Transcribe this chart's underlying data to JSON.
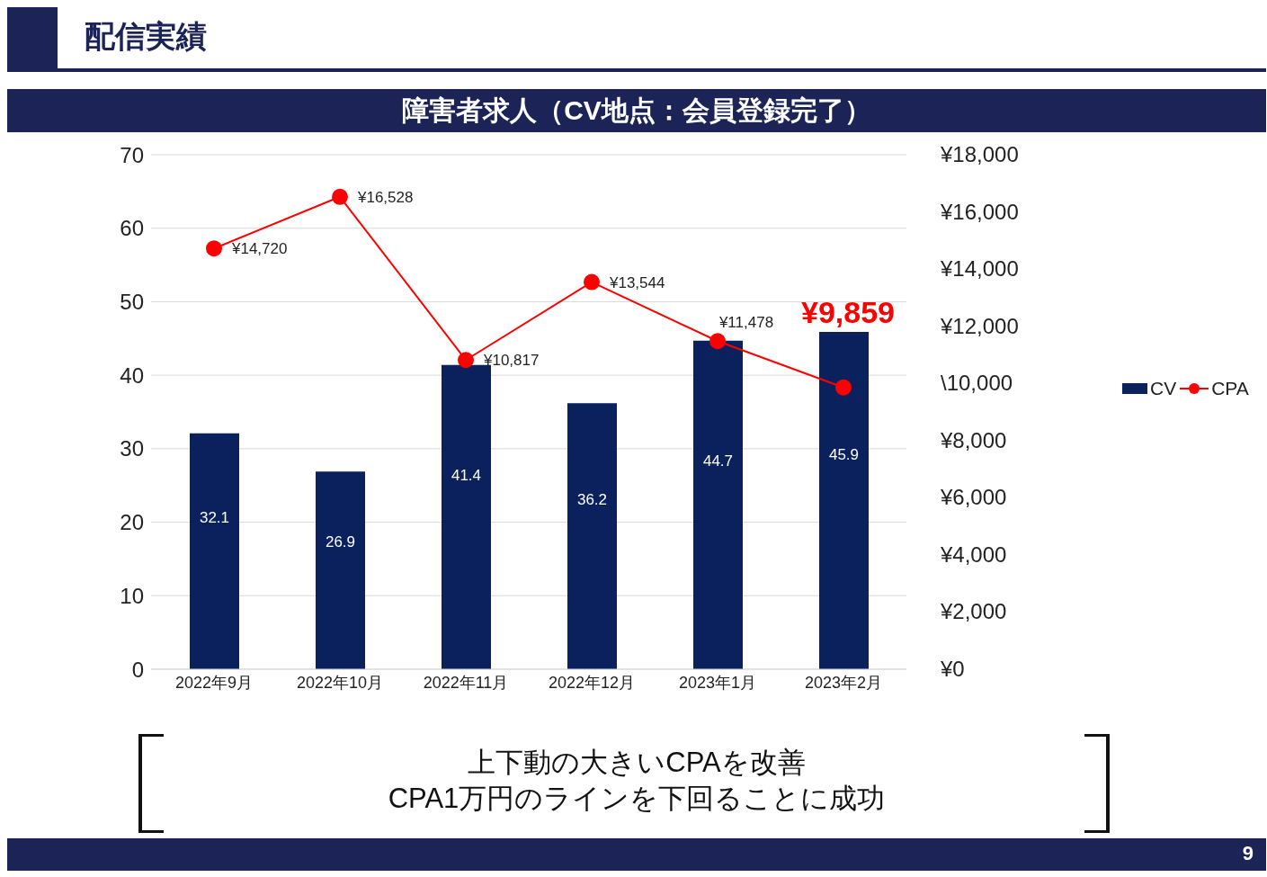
{
  "chart_data": {
    "type": "bar",
    "title": "配信実績",
    "subtitle": "障害者求人（CV地点：会員登録完了）",
    "categories": [
      "2022年9月",
      "2022年10月",
      "2022年11月",
      "2022年12月",
      "2023年1月",
      "2023年2月"
    ],
    "series": [
      {
        "name": "CV",
        "color": "#0b215e",
        "values": [
          32.1,
          26.9,
          41.4,
          36.2,
          44.7,
          45.9
        ],
        "value_labels": [
          "32.1",
          "26.9",
          "41.4",
          "36.2",
          "44.7",
          "45.9"
        ]
      },
      {
        "name": "CPA",
        "type": "line",
        "axis": "y2",
        "color": "#ff0000",
        "marker": "circle",
        "values": [
          14720,
          16528,
          10817,
          13544,
          11478,
          9859
        ],
        "value_labels": [
          "¥14,720",
          "¥16,528",
          "¥10,817",
          "¥13,544",
          "¥11,478",
          "¥9,859"
        ]
      }
    ],
    "ylim": [
      0,
      70
    ],
    "yticks": [
      0,
      10,
      20,
      30,
      40,
      50,
      60,
      70
    ],
    "y2lim": [
      0,
      18000
    ],
    "y2ticks": [
      {
        "value": 0,
        "label": "¥0"
      },
      {
        "value": 2000,
        "label": "¥2,000"
      },
      {
        "value": 4000,
        "label": "¥4,000"
      },
      {
        "value": 6000,
        "label": "¥6,000"
      },
      {
        "value": 8000,
        "label": "¥8,000"
      },
      {
        "value": 10000,
        "label": "\\10,000"
      },
      {
        "value": 12000,
        "label": "¥12,000"
      },
      {
        "value": 14000,
        "label": "¥14,000"
      },
      {
        "value": 16000,
        "label": "¥16,000"
      },
      {
        "value": 18000,
        "label": "¥18,000"
      }
    ],
    "grid": "y",
    "legend": "right",
    "annotations": [
      "上下動の大きいCPAを改善\nCPA1万円のラインを下回ることに成功",
      "9"
    ]
  }
}
